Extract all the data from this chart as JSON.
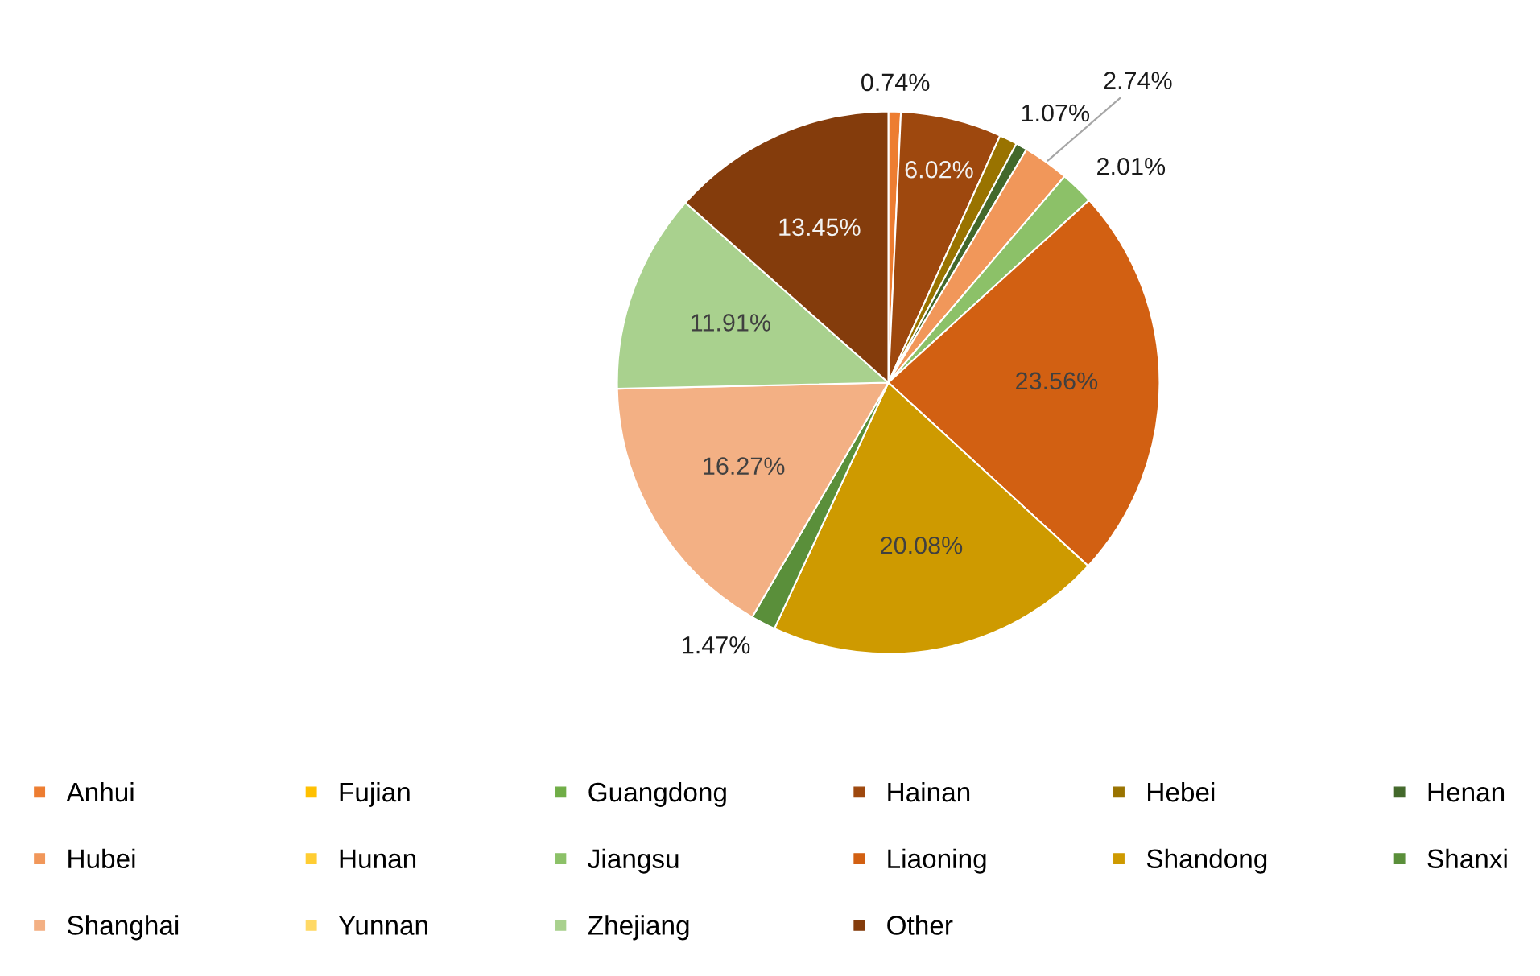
{
  "chart_data": {
    "type": "pie",
    "categories": [
      "Anhui",
      "Fujian",
      "Guangdong",
      "Hainan",
      "Hebei",
      "Henan",
      "Hubei",
      "Hunan",
      "Jiangsu",
      "Liaoning",
      "Shandong",
      "Shanxi",
      "Shanghai",
      "Yunnan",
      "Zhejiang",
      "Other"
    ],
    "values": [
      0.74,
      0,
      0,
      6.02,
      1.07,
      0.68,
      2.74,
      0,
      2.01,
      23.56,
      20.08,
      1.47,
      16.27,
      0,
      11.91,
      13.45
    ],
    "colors": [
      "#ed7d31",
      "#ffc000",
      "#70ad47",
      "#9e480e",
      "#997300",
      "#43682b",
      "#f1975a",
      "#ffcd33",
      "#8cc168",
      "#d26012",
      "#ce9a00",
      "#5a8f3a",
      "#f3b084",
      "#ffd966",
      "#a9d18e",
      "#843c0c"
    ],
    "value_labels": [
      "0.74%",
      null,
      null,
      "6.02%",
      "1.07%",
      null,
      "2.74%",
      null,
      "2.01%",
      "23.56%",
      "20.08%",
      "1.47%",
      "16.27%",
      null,
      "11.91%",
      "13.45%"
    ],
    "legend": "bottom"
  }
}
